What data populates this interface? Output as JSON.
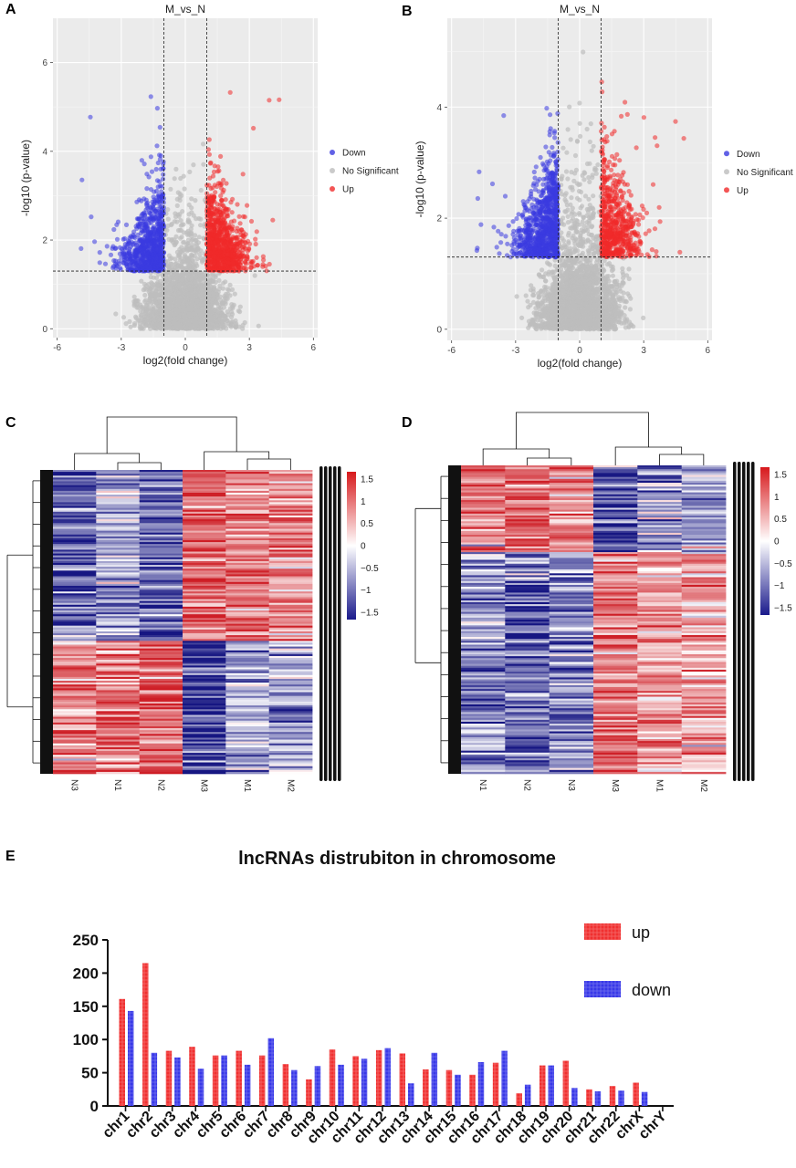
{
  "panel_labels": {
    "a": "A",
    "b": "B",
    "c": "C",
    "d": "D",
    "e": "E"
  },
  "colors": {
    "down": "#3a3ae0",
    "up": "#f02a2a",
    "ns": "#bdbdbd",
    "panel_bg": "#ebebeb",
    "heat_high": "#d7191c",
    "heat_mid": "#ffffff",
    "heat_low": "#1a1a8c",
    "bar_up": "#f03030",
    "bar_down": "#3838e8"
  },
  "chart_data": [
    {
      "id": "A",
      "type": "scatter",
      "title": "M_vs_N",
      "xlabel": "log2(fold change)",
      "ylabel": "-log10 (p-value)",
      "xlim": [
        -6.2,
        6.2
      ],
      "ylim": [
        -0.2,
        7.0
      ],
      "xticks": [
        -6,
        -3,
        0,
        3,
        6
      ],
      "yticks": [
        0,
        2,
        4,
        6
      ],
      "fc_threshold": [
        -1,
        1
      ],
      "p_threshold": 1.3,
      "legend": [
        "Down",
        "No Significant",
        "Up"
      ],
      "n_ns": 2600,
      "n_up": 900,
      "n_down": 800,
      "ymax_hint": 6.8
    },
    {
      "id": "B",
      "type": "scatter",
      "title": "M_vs_N",
      "xlabel": "log2(fold change)",
      "ylabel": "-log10 (p-value)",
      "xlim": [
        -6.2,
        6.2
      ],
      "ylim": [
        -0.2,
        5.6
      ],
      "xticks": [
        -6,
        -3,
        0,
        3,
        6
      ],
      "yticks": [
        0,
        2,
        4
      ],
      "fc_threshold": [
        -1,
        1
      ],
      "p_threshold": 1.3,
      "legend": [
        "Down",
        "No Significant",
        "Up"
      ],
      "n_ns": 2600,
      "n_up": 600,
      "n_down": 900,
      "ymax_hint": 5.4
    },
    {
      "id": "C",
      "type": "heatmap",
      "columns": [
        "N3",
        "N1",
        "N2",
        "M3",
        "M1",
        "M2"
      ],
      "colorbar_ticks": [
        "1.5",
        "1",
        "0.5",
        "0",
        "−0.5",
        "−1",
        "−1.5"
      ],
      "range": [
        -1.5,
        1.5
      ],
      "blocks": [
        {
          "rows": 0.56,
          "means": [
            -1.0,
            -0.5,
            -1.0,
            1.1,
            0.9,
            0.8
          ]
        },
        {
          "rows": 0.44,
          "means": [
            0.8,
            1.0,
            1.0,
            -1.3,
            -0.5,
            -0.6
          ]
        }
      ]
    },
    {
      "id": "D",
      "type": "heatmap",
      "columns": [
        "N1",
        "N2",
        "N3",
        "M3",
        "M1",
        "M2"
      ],
      "colorbar_ticks": [
        "1.5",
        "1",
        "0.5",
        "0",
        "−0.5",
        "−1",
        "−1.5"
      ],
      "range": [
        -1.5,
        1.5
      ],
      "blocks": [
        {
          "rows": 0.28,
          "means": [
            0.9,
            0.9,
            0.9,
            -1.2,
            -0.6,
            -0.5
          ]
        },
        {
          "rows": 0.72,
          "means": [
            -0.7,
            -1.0,
            -0.8,
            1.0,
            0.6,
            0.6
          ]
        }
      ]
    },
    {
      "id": "E",
      "type": "bar",
      "title": "lncRNAs distrubiton in chromosome",
      "categories": [
        "chr1",
        "chr2",
        "chr3",
        "chr4",
        "chr5",
        "chr6",
        "chr7",
        "chr8",
        "chr9",
        "chr10",
        "chr11",
        "chr12",
        "chr13",
        "chr14",
        "chr15",
        "chr16",
        "chr17",
        "chr18",
        "chr19",
        "chr20",
        "chr21",
        "chr22",
        "chrX",
        "chrY"
      ],
      "series": [
        {
          "name": "up",
          "values": [
            161,
            215,
            83,
            89,
            76,
            83,
            76,
            63,
            40,
            85,
            75,
            84,
            79,
            55,
            54,
            47,
            65,
            19,
            61,
            68,
            25,
            30,
            35,
            0
          ]
        },
        {
          "name": "down",
          "values": [
            143,
            80,
            73,
            56,
            76,
            62,
            102,
            54,
            60,
            62,
            71,
            87,
            34,
            80,
            47,
            66,
            83,
            32,
            61,
            27,
            22,
            23,
            21,
            0
          ]
        }
      ],
      "ylim": [
        0,
        250
      ],
      "yticks": [
        0,
        50,
        100,
        150,
        200,
        250
      ],
      "legend_position": "top-right"
    }
  ]
}
